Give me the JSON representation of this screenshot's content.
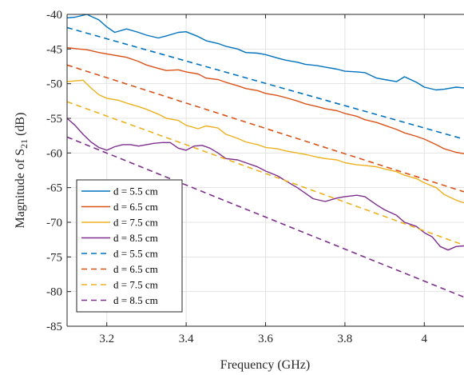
{
  "chart_data": {
    "type": "line",
    "xlabel": "Frequency (GHz)",
    "ylabel_main": "Magnitude of S",
    "ylabel_sub": "21",
    "ylabel_unit": " (dB)",
    "xlim": [
      3.1,
      4.1
    ],
    "ylim": [
      -85,
      -40
    ],
    "xticks": [
      3.2,
      3.4,
      3.6,
      3.8,
      4.0
    ],
    "xtick_labels": [
      "3.2",
      "3.4",
      "3.6",
      "3.8",
      "4"
    ],
    "yticks": [
      -85,
      -80,
      -75,
      -70,
      -65,
      -60,
      -55,
      -50,
      -45,
      -40
    ],
    "ytick_labels": [
      "-85",
      "-80",
      "-75",
      "-70",
      "-65",
      "-60",
      "-55",
      "-50",
      "-45",
      "-40"
    ],
    "grid": true,
    "legend_position": "bottom-left",
    "series": [
      {
        "name": "d = 5.5 cm",
        "style": "solid",
        "color": "#0072BD",
        "x": [
          3.1,
          3.12,
          3.15,
          3.18,
          3.2,
          3.22,
          3.25,
          3.28,
          3.3,
          3.33,
          3.35,
          3.38,
          3.4,
          3.43,
          3.45,
          3.48,
          3.5,
          3.53,
          3.55,
          3.58,
          3.6,
          3.63,
          3.65,
          3.68,
          3.7,
          3.73,
          3.75,
          3.78,
          3.8,
          3.83,
          3.85,
          3.88,
          3.9,
          3.93,
          3.95,
          3.98,
          4.0,
          4.03,
          4.05,
          4.08,
          4.1
        ],
        "y": [
          -40.5,
          -40.4,
          -40.0,
          -40.8,
          -41.8,
          -42.6,
          -42.1,
          -42.6,
          -43.0,
          -43.4,
          -43.1,
          -42.6,
          -42.5,
          -43.2,
          -43.8,
          -44.2,
          -44.6,
          -45.0,
          -45.5,
          -45.6,
          -45.8,
          -46.3,
          -46.6,
          -46.9,
          -47.2,
          -47.4,
          -47.6,
          -47.9,
          -48.2,
          -48.3,
          -48.4,
          -49.2,
          -49.4,
          -49.7,
          -49.0,
          -49.8,
          -50.5,
          -50.9,
          -50.8,
          -50.5,
          -50.6
        ]
      },
      {
        "name": "d = 6.5 cm",
        "style": "solid",
        "color": "#D95319",
        "x": [
          3.1,
          3.13,
          3.15,
          3.18,
          3.2,
          3.23,
          3.25,
          3.28,
          3.3,
          3.33,
          3.35,
          3.38,
          3.4,
          3.43,
          3.45,
          3.48,
          3.5,
          3.53,
          3.55,
          3.58,
          3.6,
          3.63,
          3.65,
          3.68,
          3.7,
          3.73,
          3.75,
          3.78,
          3.8,
          3.83,
          3.85,
          3.88,
          3.9,
          3.93,
          3.95,
          3.98,
          4.0,
          4.03,
          4.05,
          4.08,
          4.1
        ],
        "y": [
          -44.8,
          -45.0,
          -45.1,
          -45.5,
          -45.7,
          -46.0,
          -46.2,
          -46.8,
          -47.3,
          -47.8,
          -48.1,
          -48.0,
          -48.3,
          -48.6,
          -49.2,
          -49.4,
          -49.8,
          -50.3,
          -50.7,
          -51.0,
          -51.4,
          -51.7,
          -52.0,
          -52.5,
          -52.9,
          -53.3,
          -53.6,
          -53.9,
          -54.3,
          -54.7,
          -55.2,
          -55.6,
          -56.0,
          -56.6,
          -57.1,
          -57.6,
          -58.0,
          -58.8,
          -59.4,
          -59.9,
          -60.1
        ]
      },
      {
        "name": "d = 7.5 cm",
        "style": "solid",
        "color": "#EDB120",
        "x": [
          3.1,
          3.12,
          3.14,
          3.16,
          3.18,
          3.2,
          3.23,
          3.25,
          3.28,
          3.3,
          3.33,
          3.35,
          3.38,
          3.4,
          3.43,
          3.45,
          3.48,
          3.5,
          3.53,
          3.55,
          3.58,
          3.6,
          3.63,
          3.65,
          3.68,
          3.7,
          3.73,
          3.75,
          3.78,
          3.8,
          3.83,
          3.85,
          3.88,
          3.9,
          3.93,
          3.95,
          3.98,
          4.0,
          4.03,
          4.05,
          4.08,
          4.1
        ],
        "y": [
          -49.7,
          -49.6,
          -49.5,
          -50.6,
          -51.6,
          -52.1,
          -52.4,
          -52.8,
          -53.3,
          -53.7,
          -54.4,
          -55.0,
          -55.3,
          -56.0,
          -56.5,
          -56.1,
          -56.4,
          -57.3,
          -57.9,
          -58.4,
          -58.8,
          -59.2,
          -59.4,
          -59.7,
          -60.0,
          -60.2,
          -60.6,
          -60.8,
          -61.0,
          -61.4,
          -61.7,
          -61.8,
          -62.0,
          -62.3,
          -62.7,
          -63.2,
          -63.7,
          -64.3,
          -65.0,
          -66.0,
          -66.8,
          -67.2
        ]
      },
      {
        "name": "d = 8.5 cm",
        "style": "solid",
        "color": "#7E2F8E",
        "x": [
          3.1,
          3.12,
          3.14,
          3.16,
          3.18,
          3.2,
          3.22,
          3.24,
          3.26,
          3.28,
          3.3,
          3.32,
          3.34,
          3.36,
          3.38,
          3.4,
          3.42,
          3.44,
          3.46,
          3.48,
          3.5,
          3.53,
          3.55,
          3.58,
          3.6,
          3.63,
          3.65,
          3.68,
          3.7,
          3.72,
          3.75,
          3.78,
          3.8,
          3.83,
          3.85,
          3.88,
          3.9,
          3.93,
          3.95,
          3.98,
          4.0,
          4.02,
          4.04,
          4.06,
          4.08,
          4.1
        ],
        "y": [
          -55.0,
          -56.0,
          -57.3,
          -58.4,
          -59.2,
          -59.6,
          -59.1,
          -58.8,
          -58.8,
          -59.0,
          -58.8,
          -58.6,
          -58.5,
          -58.5,
          -59.3,
          -59.6,
          -59.0,
          -58.9,
          -59.3,
          -60.0,
          -60.8,
          -61.0,
          -61.4,
          -62.0,
          -62.6,
          -63.3,
          -64.0,
          -65.0,
          -65.8,
          -66.6,
          -67.0,
          -66.5,
          -66.3,
          -66.1,
          -66.3,
          -67.5,
          -68.2,
          -69.0,
          -70.0,
          -70.6,
          -71.5,
          -72.1,
          -73.5,
          -74.0,
          -73.5,
          -73.4
        ]
      },
      {
        "name": "d = 5.5 cm",
        "style": "dashed",
        "color": "#0072BD",
        "x": [
          3.1,
          4.1
        ],
        "y": [
          -41.9,
          -58.0
        ]
      },
      {
        "name": "d = 6.5 cm",
        "style": "dashed",
        "color": "#D95319",
        "x": [
          3.1,
          4.1
        ],
        "y": [
          -47.3,
          -65.6
        ]
      },
      {
        "name": "d = 7.5 cm",
        "style": "dashed",
        "color": "#EDB120",
        "x": [
          3.1,
          4.1
        ],
        "y": [
          -52.6,
          -73.3
        ]
      },
      {
        "name": "d = 8.5 cm",
        "style": "dashed",
        "color": "#7E2F8E",
        "x": [
          3.1,
          4.1
        ],
        "y": [
          -57.7,
          -80.8
        ]
      }
    ]
  }
}
